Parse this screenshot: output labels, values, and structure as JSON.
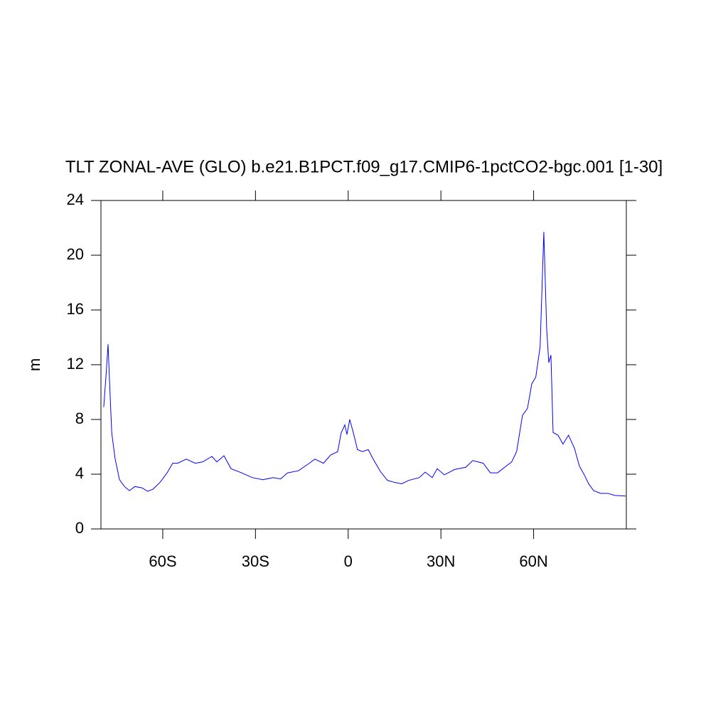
{
  "chart_data": {
    "type": "line",
    "title": "TLT ZONAL-AVE (GLO) b.e21.B1PCT.f09_g17.CMIP6-1pctCO2-bgc.001 [1-30]",
    "y_label": "m",
    "color": "#0000ff",
    "x": [
      -79.1,
      -78.4,
      -77.7,
      -77.0,
      -76.5,
      -75.4,
      -74.0,
      -72.4,
      -70.8,
      -69.0,
      -66.7,
      -64.9,
      -63.2,
      -60.9,
      -58.6,
      -56.8,
      -55.2,
      -52.4,
      -49.5,
      -47.1,
      -44.1,
      -42.5,
      -40.2,
      -37.9,
      -34.5,
      -31.0,
      -27.6,
      -24.2,
      -21.9,
      -19.6,
      -16.1,
      -12.6,
      -10.8,
      -8.0,
      -5.7,
      -3.4,
      -2.3,
      -1.1,
      -0.4,
      0.5,
      1.7,
      3.0,
      4.6,
      6.5,
      8.1,
      10.4,
      12.7,
      15.0,
      17.3,
      19.6,
      23.0,
      24.9,
      27.2,
      28.8,
      31.1,
      34.5,
      38.0,
      40.3,
      43.7,
      46.0,
      48.3,
      50.6,
      52.9,
      54.5,
      56.4,
      58.0,
      59.4,
      60.7,
      62.1,
      63.3,
      64.2,
      64.9,
      65.6,
      66.3,
      67.9,
      69.5,
      71.3,
      73.2,
      74.8,
      76.4,
      77.8,
      79.4,
      81.7,
      84.0,
      86.3,
      89.8
    ],
    "values": [
      8.9,
      11.1,
      13.5,
      9.6,
      7.0,
      5.1,
      3.6,
      3.1,
      2.8,
      3.1,
      3.0,
      2.75,
      2.9,
      3.4,
      4.1,
      4.8,
      4.8,
      5.1,
      4.8,
      4.9,
      5.3,
      4.9,
      5.35,
      4.4,
      4.1,
      3.75,
      3.6,
      3.75,
      3.65,
      4.1,
      4.25,
      4.8,
      5.1,
      4.8,
      5.4,
      5.65,
      7.0,
      7.6,
      6.9,
      8.0,
      7.0,
      5.8,
      5.65,
      5.8,
      5.1,
      4.2,
      3.55,
      3.4,
      3.3,
      3.55,
      3.75,
      4.15,
      3.75,
      4.4,
      3.95,
      4.35,
      4.5,
      5.0,
      4.8,
      4.1,
      4.1,
      4.5,
      4.9,
      5.65,
      8.3,
      8.8,
      10.6,
      11.1,
      13.3,
      21.7,
      14.75,
      12.15,
      12.7,
      7.05,
      6.85,
      6.2,
      6.85,
      5.9,
      4.6,
      3.95,
      3.3,
      2.8,
      2.6,
      2.6,
      2.45,
      2.4
    ],
    "xlim": [
      -80,
      90
    ],
    "xticks": [
      {
        "value": -60,
        "label": "60S"
      },
      {
        "value": -30,
        "label": "30S"
      },
      0,
      {
        "value": 30,
        "label": "30N"
      },
      {
        "value": 60,
        "label": "60N"
      }
    ],
    "ylim": [
      0,
      24
    ],
    "yticks": [
      0,
      4,
      8,
      12,
      16,
      20,
      24
    ]
  }
}
